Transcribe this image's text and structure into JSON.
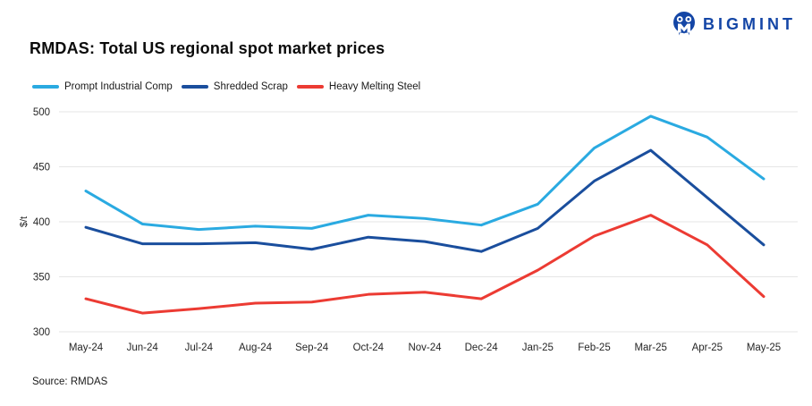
{
  "logo": {
    "text": "BIGMINT",
    "color": "#1446A6",
    "icon": "bigmint-monogram-icon"
  },
  "title": "RMDAS: Total US regional spot market prices",
  "source": "Source: RMDAS",
  "chart_data": {
    "type": "line",
    "title": "RMDAS: Total US regional spot market prices",
    "categories": [
      "May-24",
      "Jun-24",
      "Jul-24",
      "Aug-24",
      "Sep-24",
      "Oct-24",
      "Nov-24",
      "Dec-24",
      "Jan-25",
      "Feb-25",
      "Mar-25",
      "Apr-25",
      "May-25"
    ],
    "series": [
      {
        "name": "Prompt Industrial Comp",
        "color": "#2AAAE1",
        "values": [
          428,
          398,
          393,
          396,
          394,
          406,
          403,
          397,
          416,
          467,
          496,
          477,
          439
        ]
      },
      {
        "name": "Shredded Scrap",
        "color": "#1A4E9D",
        "values": [
          395,
          380,
          380,
          381,
          375,
          386,
          382,
          373,
          394,
          437,
          465,
          422,
          379
        ]
      },
      {
        "name": "Heavy Melting Steel",
        "color": "#EC3B33",
        "values": [
          330,
          317,
          321,
          326,
          327,
          334,
          336,
          330,
          356,
          387,
          406,
          379,
          332
        ]
      }
    ],
    "xlabel": "",
    "ylabel": "$/t",
    "ylim": [
      300,
      500
    ],
    "yticks": [
      300,
      350,
      400,
      450,
      500
    ],
    "grid": "horizontal",
    "gridline_color": "#E6E6E6",
    "tick_label_color": "#262626",
    "legend_position": "top-left"
  }
}
